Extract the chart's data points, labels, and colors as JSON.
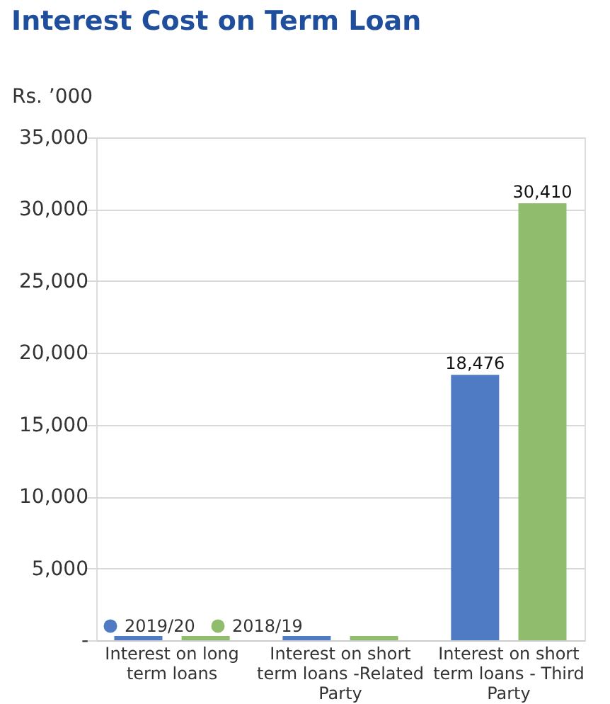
{
  "chart_data": {
    "type": "bar",
    "title": "Interest Cost on Term Loan",
    "ylabel": "Rs. ’000",
    "categories": [
      "Interest on long\nterm loans",
      "Interest on short\nterm loans -Related\nParty",
      "Interest on short\nterm loans  - Third\nParty"
    ],
    "series": [
      {
        "name": "2019/20",
        "color": "#4f7bc4",
        "values": [
          300,
          300,
          18476
        ],
        "value_labels": [
          null,
          null,
          "18,476"
        ]
      },
      {
        "name": "2018/19",
        "color": "#8fbc6d",
        "values": [
          300,
          300,
          30410
        ],
        "value_labels": [
          null,
          null,
          "30,410"
        ]
      }
    ],
    "ylim": [
      0,
      35000
    ],
    "yticks": [
      {
        "value": 0,
        "label": "-"
      },
      {
        "value": 5000,
        "label": "5,000"
      },
      {
        "value": 10000,
        "label": "10,000"
      },
      {
        "value": 15000,
        "label": "15,000"
      },
      {
        "value": 20000,
        "label": "20,000"
      },
      {
        "value": 25000,
        "label": "25,000"
      },
      {
        "value": 30000,
        "label": "30,000"
      },
      {
        "value": 35000,
        "label": "35,000"
      }
    ],
    "grid": "y",
    "legend": "bottom left"
  }
}
